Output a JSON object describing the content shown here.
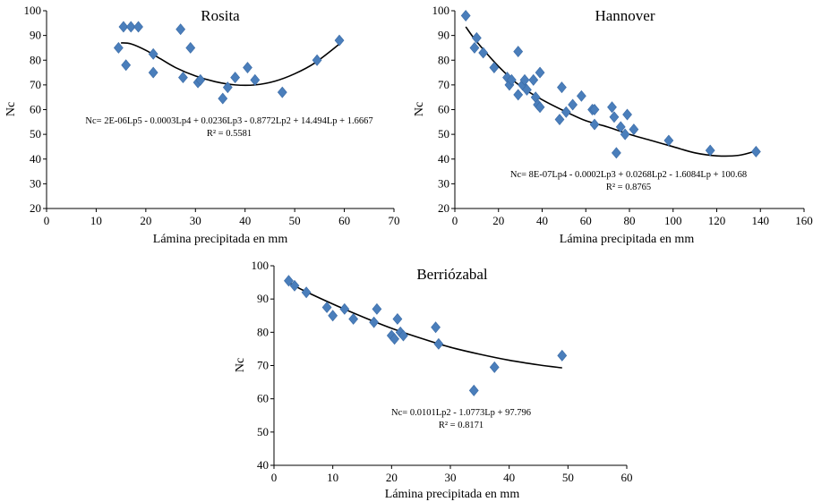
{
  "chart_data": [
    {
      "type": "scatter",
      "title": "Rosita",
      "xlabel": "Lámina precipitada en mm",
      "ylabel": "Nc",
      "xlim": [
        0,
        70
      ],
      "ylim": [
        20,
        100
      ],
      "xticks": [
        "0",
        "10",
        "20",
        "30",
        "40",
        "50",
        "60",
        "70"
      ],
      "yticks": [
        "20",
        "30",
        "40",
        "50",
        "60",
        "70",
        "80",
        "90",
        "100"
      ],
      "marker_color": "#4a7ebb",
      "points": [
        [
          14.5,
          85
        ],
        [
          15.5,
          93.5
        ],
        [
          16,
          78
        ],
        [
          17,
          93.5
        ],
        [
          18.5,
          93.5
        ],
        [
          21.5,
          82.5
        ],
        [
          21.5,
          75
        ],
        [
          27,
          92.5
        ],
        [
          27.5,
          73
        ],
        [
          29,
          85
        ],
        [
          30.5,
          71
        ],
        [
          31,
          72
        ],
        [
          35.5,
          64.5
        ],
        [
          36.5,
          69
        ],
        [
          38,
          73
        ],
        [
          40.5,
          77
        ],
        [
          42,
          72
        ],
        [
          47.5,
          67
        ],
        [
          54.5,
          80
        ],
        [
          59,
          88
        ]
      ],
      "trendline": {
        "type": "polynomial",
        "points": [
          [
            15,
            87
          ],
          [
            17,
            86.6
          ],
          [
            20,
            84
          ],
          [
            23,
            80.5
          ],
          [
            26,
            77
          ],
          [
            30,
            73.6
          ],
          [
            34,
            71.3
          ],
          [
            38,
            70
          ],
          [
            42,
            70
          ],
          [
            46,
            71.5
          ],
          [
            50,
            74.5
          ],
          [
            54,
            78.8
          ],
          [
            59,
            86.5
          ]
        ]
      },
      "equation": "Nc= 2E-06Lp5 - 0.0003Lp4 + 0.0236Lp3 - 0.8772Lp2 + 14.494Lp + 1.6667",
      "r2": "R² = 0.5581"
    },
    {
      "type": "scatter",
      "title": "Hannover",
      "xlabel": "Lámina precipitada en mm",
      "ylabel": "Nc",
      "xlim": [
        0,
        160
      ],
      "ylim": [
        20,
        100
      ],
      "xticks": [
        "0",
        "20",
        "40",
        "60",
        "80",
        "100",
        "120",
        "140",
        "160"
      ],
      "yticks": [
        "20",
        "30",
        "40",
        "50",
        "60",
        "70",
        "80",
        "90",
        "100"
      ],
      "marker_color": "#4a7ebb",
      "points": [
        [
          5,
          98
        ],
        [
          9,
          85
        ],
        [
          10,
          89
        ],
        [
          13,
          83
        ],
        [
          18,
          77
        ],
        [
          24,
          73
        ],
        [
          25,
          70
        ],
        [
          26,
          72
        ],
        [
          29,
          83.5
        ],
        [
          29,
          66
        ],
        [
          31,
          70
        ],
        [
          32,
          72
        ],
        [
          33,
          68
        ],
        [
          36,
          72
        ],
        [
          37,
          65
        ],
        [
          38,
          62
        ],
        [
          39,
          75
        ],
        [
          39,
          61
        ],
        [
          48,
          56
        ],
        [
          49,
          69
        ],
        [
          51,
          59
        ],
        [
          54,
          62
        ],
        [
          58,
          65.5
        ],
        [
          63,
          60
        ],
        [
          64,
          54
        ],
        [
          64,
          60
        ],
        [
          72,
          61
        ],
        [
          73,
          57
        ],
        [
          74,
          42.5
        ],
        [
          76,
          53
        ],
        [
          78,
          50
        ],
        [
          79,
          58
        ],
        [
          82,
          52
        ],
        [
          98,
          47.5
        ],
        [
          117,
          43.5
        ],
        [
          138,
          43
        ]
      ],
      "trendline": {
        "type": "polynomial",
        "points": [
          [
            5,
            93.5
          ],
          [
            10,
            87.5
          ],
          [
            20,
            77.5
          ],
          [
            30,
            69.5
          ],
          [
            40,
            64
          ],
          [
            50,
            59.5
          ],
          [
            60,
            55.5
          ],
          [
            70,
            53
          ],
          [
            80,
            50
          ],
          [
            90,
            47.5
          ],
          [
            100,
            45
          ],
          [
            110,
            42.5
          ],
          [
            120,
            41.3
          ],
          [
            130,
            41.5
          ],
          [
            138,
            43.3
          ]
        ]
      },
      "equation": "Nc= 8E-07Lp4 - 0.0002Lp3 + 0.0268Lp2 - 1.6084Lp + 100.68",
      "r2": "R² = 0.8765"
    },
    {
      "type": "scatter",
      "title": "Berriózabal",
      "xlabel": "Lámina precipitada en mm",
      "ylabel": "Nc",
      "xlim": [
        0,
        60
      ],
      "ylim": [
        40,
        100
      ],
      "xticks": [
        "0",
        "10",
        "20",
        "30",
        "40",
        "50",
        "60"
      ],
      "yticks": [
        "40",
        "50",
        "60",
        "70",
        "80",
        "90",
        "100"
      ],
      "marker_color": "#4a7ebb",
      "points": [
        [
          2.5,
          95.5
        ],
        [
          3.5,
          94
        ],
        [
          5.5,
          92
        ],
        [
          9,
          87.5
        ],
        [
          10,
          85
        ],
        [
          12,
          87
        ],
        [
          13.5,
          84
        ],
        [
          17,
          83
        ],
        [
          17.5,
          87
        ],
        [
          20,
          79
        ],
        [
          20.5,
          78
        ],
        [
          21,
          84
        ],
        [
          21.5,
          80
        ],
        [
          22,
          79
        ],
        [
          27.5,
          81.5
        ],
        [
          28,
          76.5
        ],
        [
          34,
          62.5
        ],
        [
          37.5,
          69.5
        ],
        [
          49,
          73
        ]
      ],
      "trendline": {
        "type": "polynomial",
        "points": [
          [
            2.5,
            95
          ],
          [
            5,
            92.6
          ],
          [
            10,
            88.5
          ],
          [
            15,
            84.7
          ],
          [
            20,
            81.2
          ],
          [
            25,
            78.2
          ],
          [
            30,
            75.5
          ],
          [
            35,
            73.4
          ],
          [
            40,
            71.6
          ],
          [
            45,
            70.2
          ],
          [
            49,
            69.3
          ]
        ]
      },
      "equation": "Nc= 0.0101Lp2 - 1.0773Lp + 97.796",
      "r2": "R² = 0.8171"
    }
  ]
}
